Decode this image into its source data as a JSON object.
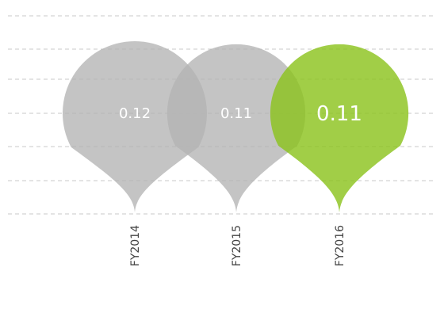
{
  "chart_data": {
    "type": "bubble",
    "categories": [
      "FY2014",
      "FY2015",
      "FY2016"
    ],
    "values": [
      0.12,
      0.11,
      0.11
    ],
    "value_labels": [
      "0.12",
      "0.11",
      "0.11"
    ],
    "highlight_category": "FY2016",
    "grid": "horizontal-dashed",
    "colors": {
      "default": "#b4b4b4",
      "highlight": "#8cc31e",
      "gridline": "#c8c8c8",
      "label": "#444444"
    }
  }
}
